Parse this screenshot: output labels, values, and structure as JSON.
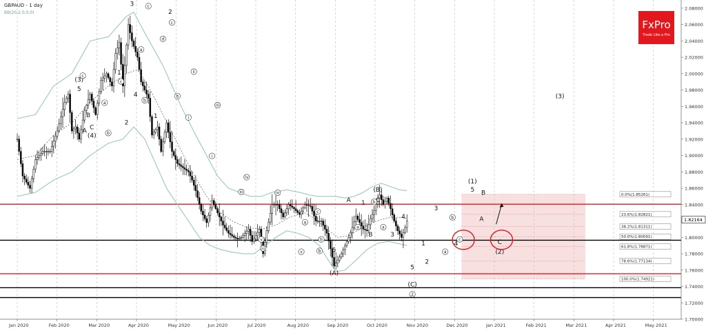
{
  "header": {
    "symbol_title": "GBPAUD - 1 day",
    "indicator_label": "BB(20,2.0,0,0)"
  },
  "brand": {
    "name": "FxPro",
    "tagline": "Trade Like a Pro",
    "color": "#e3171e"
  },
  "colors": {
    "candle_up": "#0a0a0a",
    "candle_down": "#0a0a0a",
    "bollinger": "#8fc7a8",
    "ma": "#555555",
    "red_line": "#e3171e",
    "black_line": "#000000",
    "fib_zone": "#f6d3d3",
    "price_box_border": "#333333"
  },
  "chart_data": {
    "type": "candlestick",
    "symbol": "GBPAUD",
    "timeframe": "1 day",
    "x_labels": [
      "Jan 2020",
      "Feb 2020",
      "Mar 2020",
      "Apr 2020",
      "May 2020",
      "Jun 2020",
      "Jul 2020",
      "Aug 2020",
      "Sep 2020",
      "Oct 2020",
      "Nov 2020",
      "Dec 2020",
      "Jan 2021",
      "Feb 2021",
      "Mar 2021",
      "Apr 2021",
      "May 2021"
    ],
    "y_ticks": [
      "2.08000",
      "2.06000",
      "2.04000",
      "2.02000",
      "2.00000",
      "1.98000",
      "1.96000",
      "1.94000",
      "1.92000",
      "1.90000",
      "1.88000",
      "1.86000",
      "1.84000",
      "1.82000",
      "1.80000",
      "1.78000",
      "1.76000",
      "1.74000",
      "1.72000",
      "1.70000"
    ],
    "ylim": [
      1.7,
      2.09
    ],
    "current_price": "1.82164",
    "current_price_value": 1.82164,
    "fibonacci_levels": [
      {
        "label": "0.0%(1.85261)",
        "value": 1.85261
      },
      {
        "label": "23.6%(1.82821)",
        "value": 1.82821
      },
      {
        "label": "38.2%(1.81311)",
        "value": 1.81311
      },
      {
        "label": "50.0%(1.80091)",
        "value": 1.80091
      },
      {
        "label": "61.8%(1.78871)",
        "value": 1.78871
      },
      {
        "label": "78.6%(1.77134)",
        "value": 1.77134
      },
      {
        "label": "100.0%(1.74921)",
        "value": 1.74921
      }
    ],
    "horizontal_lines": [
      {
        "color": "red",
        "value": 1.8405
      },
      {
        "color": "black",
        "value": 1.7965
      },
      {
        "color": "red",
        "value": 1.7555
      },
      {
        "color": "black",
        "value": 1.7385
      },
      {
        "color": "black",
        "value": 1.7265
      }
    ],
    "price_path": [
      [
        0,
        1.92
      ],
      [
        3,
        1.875
      ],
      [
        7,
        1.86
      ],
      [
        10,
        1.895
      ],
      [
        14,
        1.905
      ],
      [
        18,
        1.905
      ],
      [
        22,
        1.93
      ],
      [
        26,
        1.965
      ],
      [
        28,
        1.975
      ],
      [
        30,
        1.93
      ],
      [
        32,
        1.935
      ],
      [
        34,
        1.92
      ],
      [
        37,
        1.955
      ],
      [
        40,
        1.975
      ],
      [
        43,
        1.95
      ],
      [
        46,
        1.992
      ],
      [
        49,
        2.0
      ],
      [
        52,
        1.985
      ],
      [
        54,
        2.025
      ],
      [
        56,
        2.038
      ],
      [
        58,
        1.985
      ],
      [
        61,
        2.06
      ],
      [
        63,
        2.04
      ],
      [
        66,
        2.02
      ],
      [
        68,
        1.99
      ],
      [
        70,
        1.98
      ],
      [
        72,
        1.97
      ],
      [
        74,
        1.925
      ],
      [
        77,
        1.935
      ],
      [
        79,
        1.905
      ],
      [
        82,
        1.94
      ],
      [
        85,
        1.905
      ],
      [
        88,
        1.89
      ],
      [
        91,
        1.885
      ],
      [
        94,
        1.88
      ],
      [
        96,
        1.87
      ],
      [
        98,
        1.857
      ],
      [
        101,
        1.832
      ],
      [
        104,
        1.818
      ],
      [
        107,
        1.845
      ],
      [
        110,
        1.83
      ],
      [
        113,
        1.815
      ],
      [
        116,
        1.805
      ],
      [
        119,
        1.8
      ],
      [
        121,
        1.798
      ],
      [
        123,
        1.8
      ],
      [
        125,
        1.805
      ],
      [
        127,
        1.81
      ],
      [
        129,
        1.795
      ],
      [
        131,
        1.802
      ],
      [
        133,
        1.81
      ],
      [
        135,
        1.78
      ],
      [
        137,
        1.808
      ],
      [
        140,
        1.84
      ],
      [
        143,
        1.84
      ],
      [
        146,
        1.825
      ],
      [
        149,
        1.84
      ],
      [
        152,
        1.835
      ],
      [
        155,
        1.828
      ],
      [
        158,
        1.84
      ],
      [
        161,
        1.838
      ],
      [
        164,
        1.82
      ],
      [
        167,
        1.82
      ],
      [
        170,
        1.805
      ],
      [
        172,
        1.786
      ],
      [
        174,
        1.765
      ],
      [
        176,
        1.772
      ],
      [
        178,
        1.78
      ],
      [
        180,
        1.79
      ],
      [
        182,
        1.8
      ],
      [
        184,
        1.812
      ],
      [
        186,
        1.826
      ],
      [
        188,
        1.818
      ],
      [
        190,
        1.81
      ],
      [
        192,
        1.808
      ],
      [
        194,
        1.823
      ],
      [
        196,
        1.833
      ],
      [
        198,
        1.848
      ],
      [
        199,
        1.852
      ],
      [
        201,
        1.84
      ],
      [
        203,
        1.848
      ],
      [
        205,
        1.835
      ],
      [
        207,
        1.82
      ],
      [
        209,
        1.808
      ],
      [
        211,
        1.8
      ],
      [
        213,
        1.812
      ],
      [
        214,
        1.82
      ]
    ],
    "bollinger_upper": [
      [
        0,
        1.945
      ],
      [
        10,
        1.95
      ],
      [
        20,
        1.985
      ],
      [
        30,
        2.0
      ],
      [
        40,
        2.04
      ],
      [
        50,
        2.045
      ],
      [
        60,
        2.07
      ],
      [
        64,
        2.075
      ],
      [
        70,
        2.05
      ],
      [
        80,
        2.01
      ],
      [
        90,
        1.96
      ],
      [
        98,
        1.925
      ],
      [
        104,
        1.9
      ],
      [
        110,
        1.875
      ],
      [
        116,
        1.86
      ],
      [
        122,
        1.855
      ],
      [
        128,
        1.85
      ],
      [
        134,
        1.85
      ],
      [
        140,
        1.855
      ],
      [
        148,
        1.858
      ],
      [
        155,
        1.855
      ],
      [
        160,
        1.852
      ],
      [
        165,
        1.85
      ],
      [
        170,
        1.85
      ],
      [
        175,
        1.85
      ],
      [
        180,
        1.848
      ],
      [
        185,
        1.85
      ],
      [
        190,
        1.855
      ],
      [
        195,
        1.862
      ],
      [
        200,
        1.866
      ],
      [
        205,
        1.862
      ],
      [
        210,
        1.858
      ],
      [
        214,
        1.857
      ]
    ],
    "bollinger_lower": [
      [
        0,
        1.85
      ],
      [
        10,
        1.855
      ],
      [
        20,
        1.87
      ],
      [
        30,
        1.88
      ],
      [
        40,
        1.9
      ],
      [
        50,
        1.915
      ],
      [
        58,
        1.92
      ],
      [
        64,
        1.935
      ],
      [
        70,
        1.92
      ],
      [
        76,
        1.89
      ],
      [
        82,
        1.86
      ],
      [
        88,
        1.84
      ],
      [
        94,
        1.82
      ],
      [
        100,
        1.8
      ],
      [
        106,
        1.79
      ],
      [
        112,
        1.785
      ],
      [
        118,
        1.782
      ],
      [
        124,
        1.78
      ],
      [
        130,
        1.78
      ],
      [
        136,
        1.79
      ],
      [
        142,
        1.8
      ],
      [
        148,
        1.808
      ],
      [
        154,
        1.805
      ],
      [
        160,
        1.8
      ],
      [
        166,
        1.79
      ],
      [
        170,
        1.775
      ],
      [
        175,
        1.758
      ],
      [
        180,
        1.76
      ],
      [
        186,
        1.772
      ],
      [
        192,
        1.785
      ],
      [
        198,
        1.793
      ],
      [
        204,
        1.795
      ],
      [
        210,
        1.792
      ],
      [
        214,
        1.79
      ]
    ],
    "moving_average": [
      [
        0,
        1.895
      ],
      [
        10,
        1.9
      ],
      [
        20,
        1.925
      ],
      [
        30,
        1.94
      ],
      [
        40,
        1.965
      ],
      [
        50,
        1.985
      ],
      [
        60,
        2.0
      ],
      [
        66,
        2.005
      ],
      [
        72,
        1.985
      ],
      [
        80,
        1.95
      ],
      [
        88,
        1.915
      ],
      [
        96,
        1.88
      ],
      [
        104,
        1.85
      ],
      [
        110,
        1.833
      ],
      [
        118,
        1.82
      ],
      [
        126,
        1.812
      ],
      [
        134,
        1.81
      ],
      [
        142,
        1.815
      ],
      [
        150,
        1.825
      ],
      [
        158,
        1.83
      ],
      [
        164,
        1.822
      ],
      [
        170,
        1.81
      ],
      [
        176,
        1.8
      ],
      [
        182,
        1.802
      ],
      [
        188,
        1.81
      ],
      [
        194,
        1.817
      ],
      [
        200,
        1.822
      ],
      [
        206,
        1.825
      ],
      [
        212,
        1.824
      ],
      [
        214,
        1.823
      ]
    ],
    "wave_labels": [
      {
        "t": "(3)",
        "x": 34,
        "y": 1.99
      },
      {
        "t": "5",
        "x": 34,
        "y": 1.979
      },
      {
        "t": "B",
        "x": 39,
        "y": 1.947
      },
      {
        "t": "A",
        "x": 37,
        "y": 1.928
      },
      {
        "t": "C",
        "x": 41,
        "y": 1.932
      },
      {
        "t": "(4)",
        "x": 41,
        "y": 1.922
      },
      {
        "t": "1",
        "x": 56,
        "y": 1.999
      },
      {
        "t": "2",
        "x": 60,
        "y": 1.938
      },
      {
        "t": "3",
        "x": 63,
        "y": 2.083
      },
      {
        "t": "4",
        "x": 65,
        "y": 1.972
      },
      {
        "t": "1",
        "x": 76,
        "y": 1.946
      },
      {
        "t": "2",
        "x": 84,
        "y": 2.073
      },
      {
        "t": "A",
        "x": 182,
        "y": 1.843
      },
      {
        "t": "(B)",
        "x": 198,
        "y": 1.856
      },
      {
        "t": "C",
        "x": 198,
        "y": 1.843
      },
      {
        "t": "B",
        "x": 194,
        "y": 1.801
      },
      {
        "t": "3",
        "x": 206,
        "y": 1.801
      },
      {
        "t": "4",
        "x": 212,
        "y": 1.823
      },
      {
        "t": "5",
        "x": 174,
        "y": 1.782
      },
      {
        "t": "(A)",
        "x": 174,
        "y": 1.754
      },
      {
        "t": "3",
        "x": 156,
        "y": 1.779
      },
      {
        "t": "1",
        "x": 190,
        "y": 1.84
      },
      {
        "t": "1",
        "x": 223,
        "y": 1.79
      },
      {
        "t": "2",
        "x": 225,
        "y": 1.768
      },
      {
        "t": "3",
        "x": 230,
        "y": 1.833
      },
      {
        "t": "4",
        "x": 241,
        "y": 1.79
      },
      {
        "t": "5",
        "x": 217,
        "y": 1.761
      },
      {
        "t": "(C)",
        "x": 217,
        "y": 1.74
      },
      {
        "t": "(1)",
        "x": 250,
        "y": 1.866
      },
      {
        "t": "5",
        "x": 250,
        "y": 1.856
      },
      {
        "t": "B",
        "x": 256,
        "y": 1.852
      },
      {
        "t": "A",
        "x": 255,
        "y": 1.82
      },
      {
        "t": "C",
        "x": 265,
        "y": 1.792
      },
      {
        "t": "(2)",
        "x": 265,
        "y": 1.78
      },
      {
        "t": "(3)",
        "x": 298,
        "y": 1.97
      }
    ],
    "circled_labels": [
      {
        "t": "c",
        "x": 36,
        "y": 1.995
      },
      {
        "t": "a",
        "x": 48,
        "y": 1.962
      },
      {
        "t": "b",
        "x": 50,
        "y": 1.925
      },
      {
        "t": "c",
        "x": 57,
        "y": 1.988
      },
      {
        "t": "a",
        "x": 68,
        "y": 2.027
      },
      {
        "t": "b",
        "x": 70,
        "y": 1.965
      },
      {
        "t": "c",
        "x": 72,
        "y": 2.08
      },
      {
        "t": "d",
        "x": 80,
        "y": 2.04
      },
      {
        "t": "e",
        "x": 73,
        "y": 2.103
      },
      {
        "t": "c",
        "x": 85,
        "y": 2.06
      },
      {
        "t": "b",
        "x": 88,
        "y": 1.97
      },
      {
        "t": "ii",
        "x": 97,
        "y": 2.0
      },
      {
        "t": "i",
        "x": 94,
        "y": 1.944
      },
      {
        "t": "iii",
        "x": 110,
        "y": 1.959
      },
      {
        "t": "i",
        "x": 107,
        "y": 1.897
      },
      {
        "t": "iv",
        "x": 126,
        "y": 1.871
      },
      {
        "t": "iii",
        "x": 123,
        "y": 1.853
      },
      {
        "t": "iv",
        "x": 143,
        "y": 1.852
      },
      {
        "t": "v",
        "x": 134,
        "y": 1.795
      },
      {
        "t": "iii",
        "x": 135,
        "y": 1.784
      },
      {
        "t": "a",
        "x": 158,
        "y": 1.816
      },
      {
        "t": "c",
        "x": 165,
        "y": 1.829
      },
      {
        "t": "b",
        "x": 167,
        "y": 1.795
      },
      {
        "t": "v",
        "x": 156,
        "y": 1.78
      },
      {
        "t": "a",
        "x": 187,
        "y": 1.81
      },
      {
        "t": "b",
        "x": 196,
        "y": 1.841
      },
      {
        "t": "a",
        "x": 201,
        "y": 1.81
      },
      {
        "t": "b",
        "x": 166,
        "y": 1.781
      },
      {
        "t": "2",
        "x": 217,
        "y": 1.728
      },
      {
        "t": "b",
        "x": 239,
        "y": 1.822
      },
      {
        "t": "a",
        "x": 235,
        "y": 1.78
      },
      {
        "t": "c",
        "x": 243,
        "y": 1.795
      }
    ],
    "circles": [
      {
        "x": 245,
        "y": 1.797
      },
      {
        "x": 266,
        "y": 1.797
      }
    ],
    "fib_zone_range": {
      "x_from": 244,
      "x_to": 312,
      "y_from": 1.74921,
      "y_to": 1.85261
    },
    "forecast_arrow": {
      "from": [
        263,
        1.816
      ],
      "to": [
        266,
        1.84
      ]
    },
    "grid": true
  }
}
